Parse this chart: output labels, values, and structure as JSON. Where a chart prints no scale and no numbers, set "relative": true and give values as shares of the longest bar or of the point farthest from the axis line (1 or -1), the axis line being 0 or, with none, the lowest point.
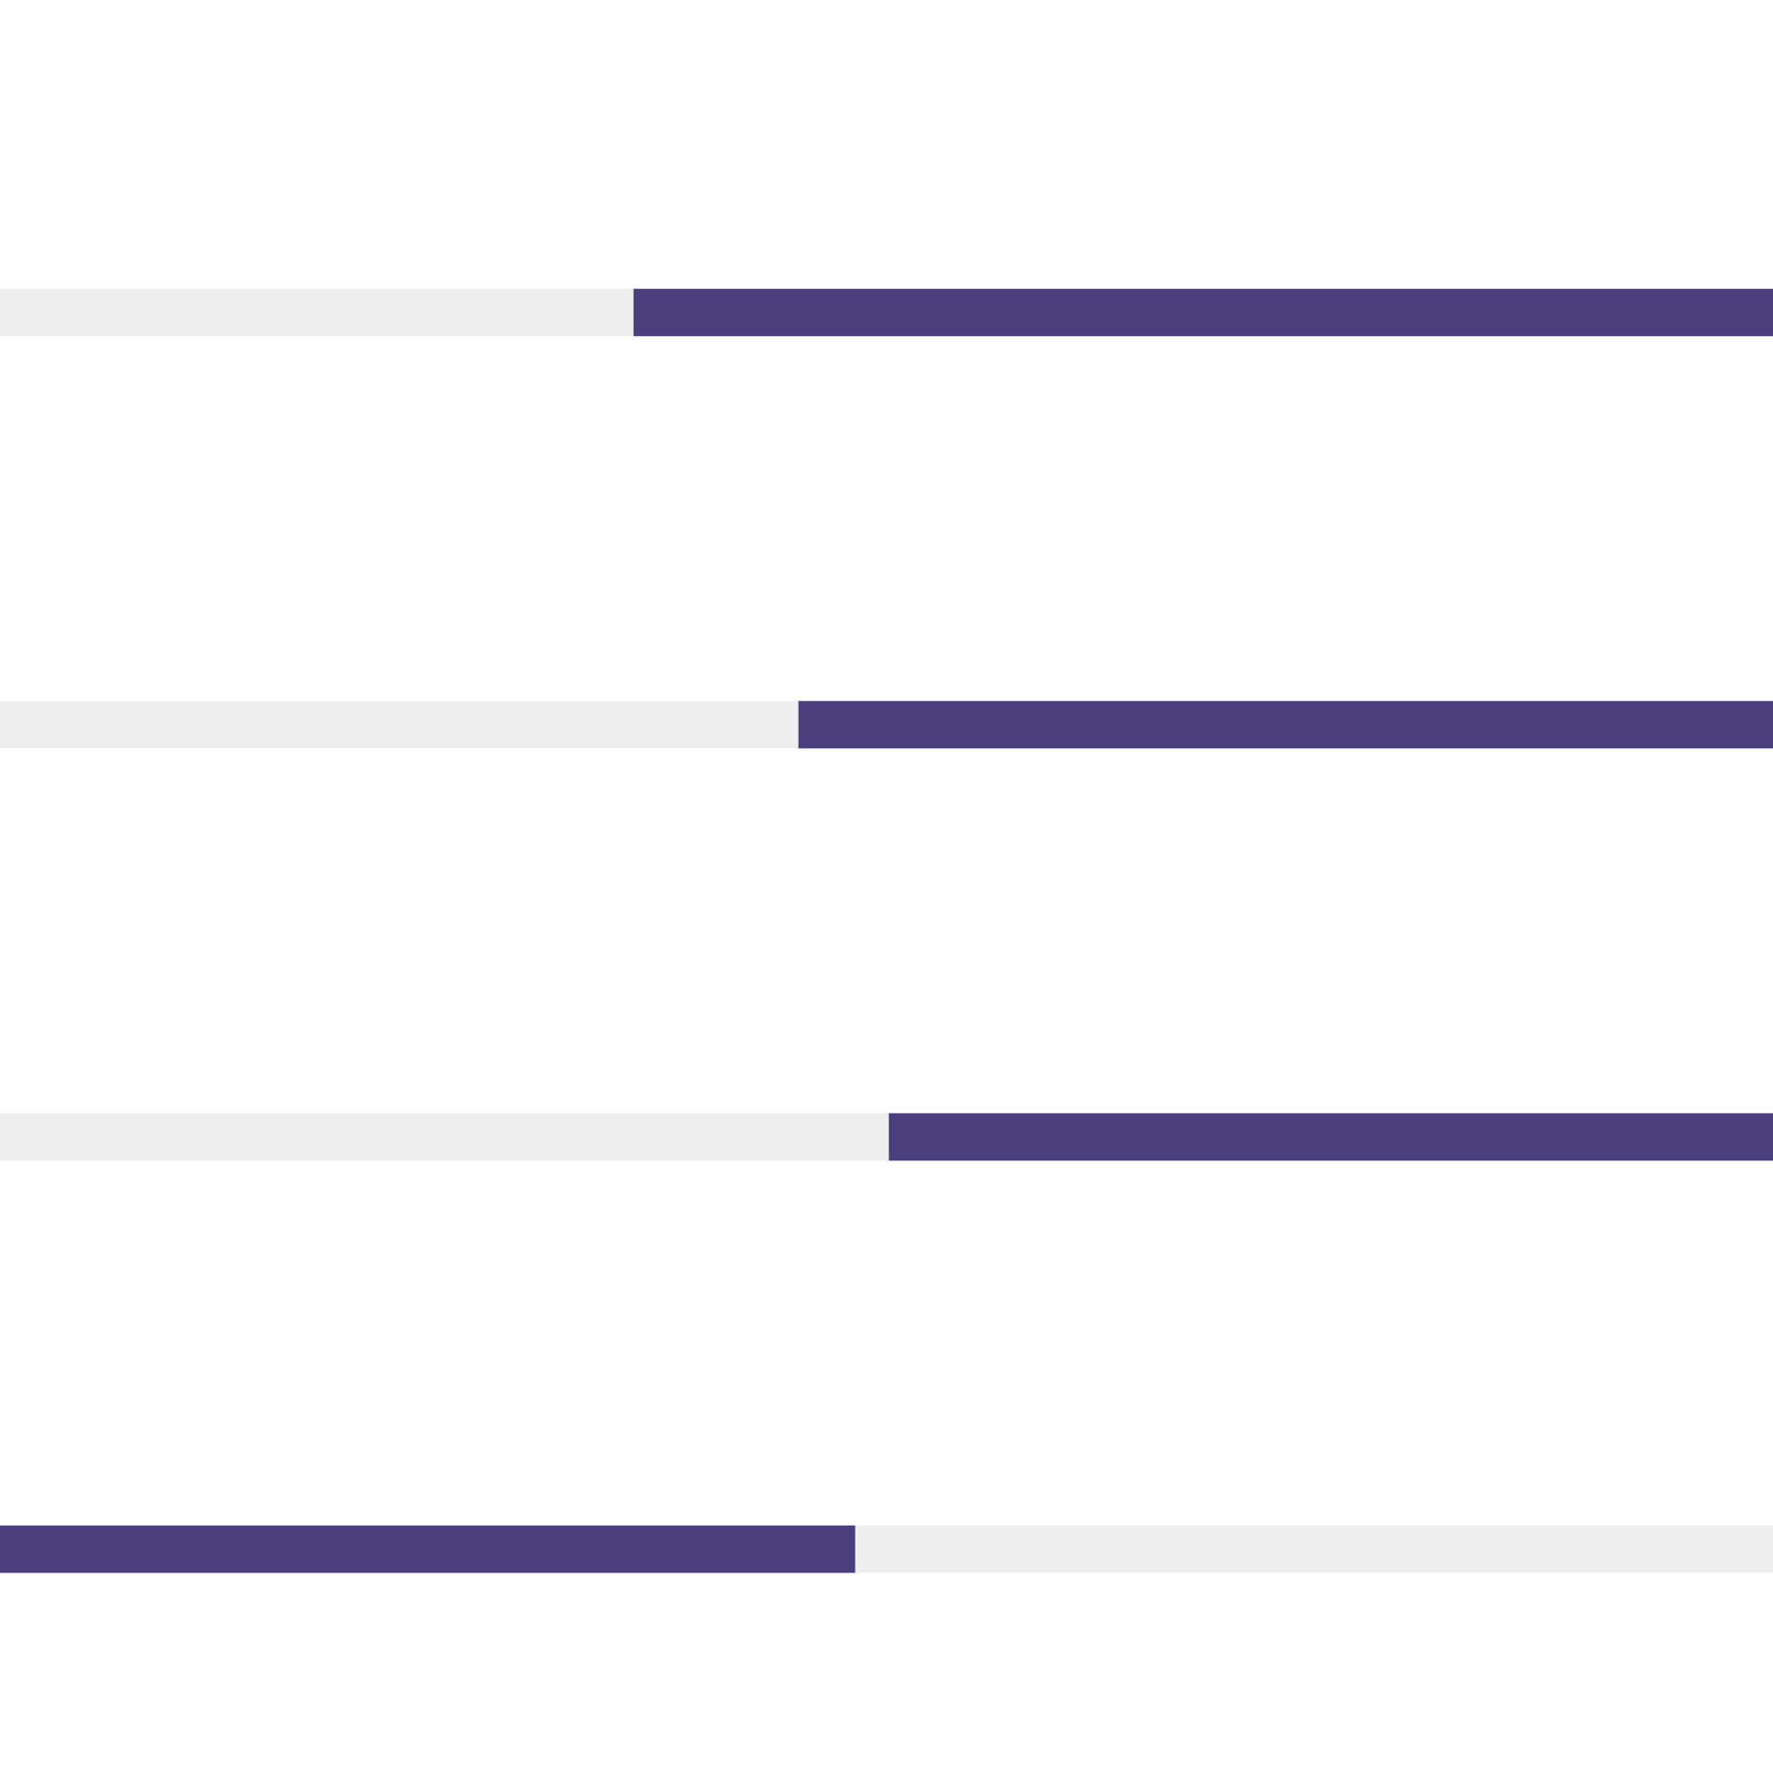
{
  "chart_data": {
    "type": "bar",
    "orientation": "horizontal",
    "stacked": true,
    "relative": true,
    "categories": [
      null,
      null,
      null,
      null
    ],
    "series": [
      {
        "colors": [
          "#eeeeee",
          "#eeeeee",
          "#eeeeee",
          "#4b3f80"
        ],
        "values": [
          0.357,
          0.45,
          0.501,
          0.482
        ]
      },
      {
        "colors": [
          "#4b3f80",
          "#4b3f80",
          "#4b3f80",
          "#eeeeee"
        ],
        "values": [
          0.643,
          0.55,
          0.499,
          0.518
        ]
      }
    ],
    "legend": false
  }
}
